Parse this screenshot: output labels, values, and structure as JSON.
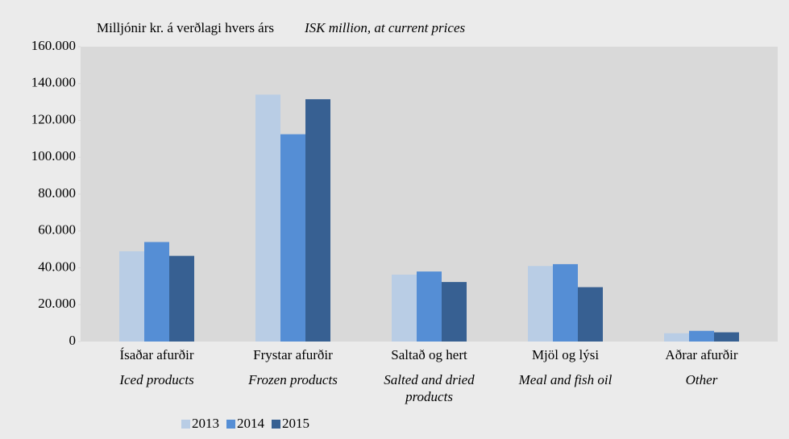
{
  "chart_data": {
    "type": "bar",
    "title": "Milljónir kr. á verðlagi hvers árs",
    "subtitle": "ISK million, at current prices",
    "categories": [
      "Ísaðar afurðir",
      "Frystar afurðir",
      "Saltað og hert",
      "Mjöl og lýsi",
      "Aðrar afurðir"
    ],
    "categories_en": [
      "Iced products",
      "Frozen products",
      "Salted and dried products",
      "Meal and fish oil",
      "Other"
    ],
    "series": [
      {
        "name": "2013",
        "color": "#b9cde5",
        "values": [
          49000,
          134000,
          36300,
          41000,
          4500
        ]
      },
      {
        "name": "2014",
        "color": "#558ed5",
        "values": [
          54000,
          112500,
          38000,
          42000,
          5800
        ]
      },
      {
        "name": "2015",
        "color": "#376092",
        "values": [
          46500,
          131500,
          32300,
          29500,
          5000
        ]
      }
    ],
    "ylim": [
      0,
      160000
    ],
    "yticks": [
      0,
      {
        "value": 20000,
        "label": "20.000"
      },
      {
        "value": 40000,
        "label": "40.000"
      },
      {
        "value": 60000,
        "label": "60.000"
      },
      {
        "value": 80000,
        "label": "80.000"
      },
      {
        "value": 100000,
        "label": "100.000"
      },
      {
        "value": 120000,
        "label": "120.000"
      },
      {
        "value": 140000,
        "label": "140.000"
      },
      {
        "value": 160000,
        "label": "160.000"
      }
    ],
    "grid": false,
    "legend": "bottom"
  }
}
